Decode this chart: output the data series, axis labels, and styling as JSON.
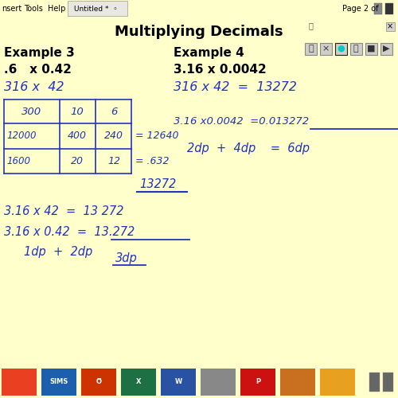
{
  "background_color": "#FFFFCC",
  "title": "Multiplying Decimals",
  "blue": "#2233BB",
  "black": "#000000",
  "darkgray": "#555555",
  "menu_bg": "#D6D3CE",
  "menu_text": "nsert   Tools   Help",
  "tab_text": "Untitled * ◦",
  "page_text": "Page 2 of",
  "taskbar_bg": "#2B2B2B",
  "taskbar_icons": [
    {
      "color": "#E84020",
      "label": ""
    },
    {
      "color": "#1E5FA8",
      "label": "SIMS"
    },
    {
      "color": "#CC3300",
      "label": "O"
    },
    {
      "color": "#1D7044",
      "label": "X"
    },
    {
      "color": "#2952A3",
      "label": "W"
    },
    {
      "color": "#888888",
      "label": ""
    },
    {
      "color": "#CC1111",
      "label": "P"
    },
    {
      "color": "#D4881A",
      "label": ""
    },
    {
      "color": "#E8A020",
      "label": ""
    }
  ],
  "ex3_label": "Example 3",
  "ex3_prob": ".6   x 0.42",
  "ex3_hand1": "316 x  42",
  "ex4_label": "Example 4",
  "ex4_prob": "3.16 x 0.0042",
  "lfs": 11,
  "hfs": 10.5
}
